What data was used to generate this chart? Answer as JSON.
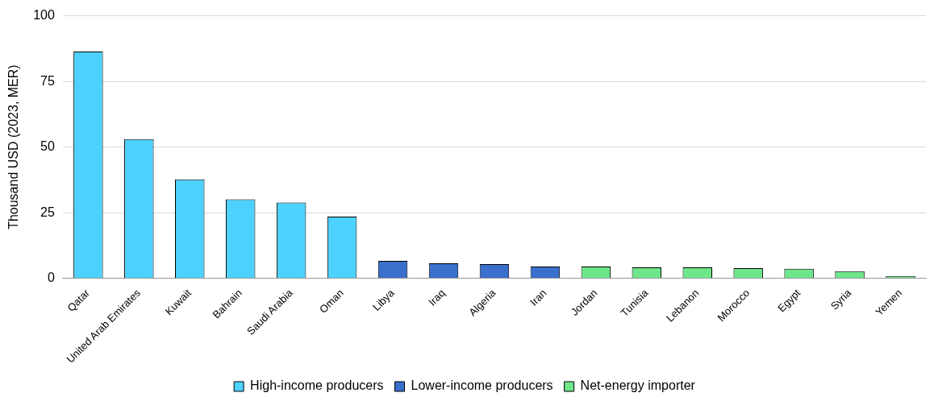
{
  "chart_data": {
    "type": "bar",
    "ylabel": "Thousand USD (2023, MER)",
    "categories": [
      "Qatar",
      "United Arab Emirates",
      "Kuwait",
      "Bahrain",
      "Saudi Arabia",
      "Oman",
      "Libya",
      "Iraq",
      "Algeria",
      "Iran",
      "Jordan",
      "Tunisia",
      "Lebanon",
      "Morocco",
      "Egypt",
      "Syria",
      "Yemen"
    ],
    "series": [
      {
        "name": "High-income producers",
        "color": "#4dd2ff",
        "values": [
          86.4,
          53.0,
          37.7,
          30.1,
          28.9,
          23.5,
          null,
          null,
          null,
          null,
          null,
          null,
          null,
          null,
          null,
          null,
          null
        ]
      },
      {
        "name": "Lower-income producers",
        "color": "#3a70cc",
        "values": [
          null,
          null,
          null,
          null,
          null,
          null,
          6.6,
          5.7,
          5.4,
          4.5,
          null,
          null,
          null,
          null,
          null,
          null,
          null
        ]
      },
      {
        "name": "Net-energy importer",
        "color": "#6ee68a",
        "values": [
          null,
          null,
          null,
          null,
          null,
          null,
          null,
          null,
          null,
          null,
          4.5,
          4.2,
          4.2,
          3.9,
          3.6,
          2.7,
          0.9
        ]
      }
    ],
    "ylim": [
      0,
      100
    ],
    "yticks": [
      0,
      25,
      50,
      75,
      100
    ],
    "grid": "y",
    "legend": "bottom"
  }
}
